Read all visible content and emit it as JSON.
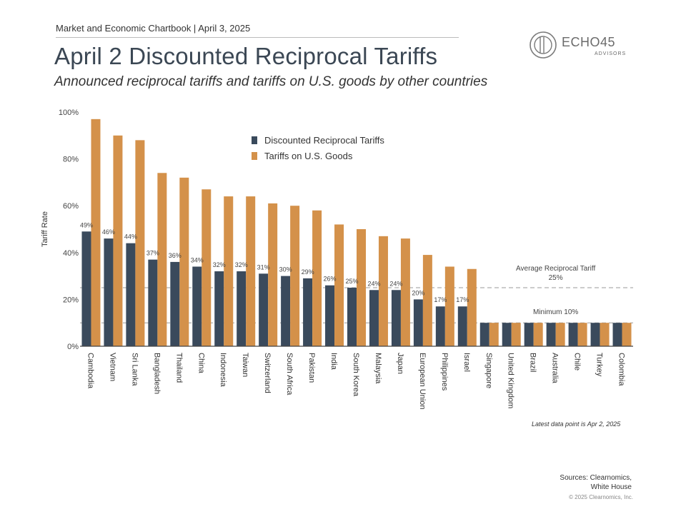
{
  "header": {
    "chartbook": "Market and Economic Chartbook | April 3, 2025",
    "title": "April 2 Discounted Reciprocal Tariffs",
    "subtitle": "Announced reciprocal tariffs and tariffs on U.S. goods by other countries"
  },
  "logo": {
    "name": "ECHO45",
    "sub": "ADVISORS"
  },
  "colors": {
    "reciprocal": "#3a4a5c",
    "us_goods": "#d4914a",
    "axis": "#444444",
    "ref_line": "#999999"
  },
  "chart_data": {
    "type": "bar",
    "ylabel": "Tariff Rate",
    "ylim": [
      0,
      100
    ],
    "yticks": [
      "0%",
      "20%",
      "40%",
      "60%",
      "80%",
      "100%"
    ],
    "ytick_values": [
      0,
      20,
      40,
      60,
      80,
      100
    ],
    "legend_placement": "top-center",
    "categories": [
      "Cambodia",
      "Vietnam",
      "Sri Lanka",
      "Bangladesh",
      "Thailand",
      "China",
      "Indonesia",
      "Taiwan",
      "Switzerland",
      "South Africa",
      "Pakistan",
      "India",
      "South Korea",
      "Malaysia",
      "Japan",
      "European Union",
      "Philippines",
      "Israel",
      "Singapore",
      "United Kingdom",
      "Brazil",
      "Australia",
      "Chile",
      "Turkey",
      "Colombia"
    ],
    "series": [
      {
        "name": "Discounted Reciprocal Tariffs",
        "values": [
          49,
          46,
          44,
          37,
          36,
          34,
          32,
          32,
          31,
          30,
          29,
          26,
          25,
          24,
          24,
          20,
          17,
          17,
          10,
          10,
          10,
          10,
          10,
          10,
          10
        ],
        "labels": [
          "49%",
          "46%",
          "44%",
          "37%",
          "36%",
          "34%",
          "32%",
          "32%",
          "31%",
          "30%",
          "29%",
          "26%",
          "25%",
          "24%",
          "24%",
          "20%",
          "17%",
          "17%",
          "",
          "",
          "",
          "",
          "",
          "",
          ""
        ]
      },
      {
        "name": "Tariffs on U.S. Goods",
        "values": [
          97,
          90,
          88,
          74,
          72,
          67,
          64,
          64,
          61,
          60,
          58,
          52,
          50,
          47,
          46,
          39,
          34,
          33,
          10,
          10,
          10,
          10,
          10,
          10,
          10
        ]
      }
    ],
    "reference_lines": [
      {
        "value": 25,
        "label": "Average Reciprocal Tariff",
        "sublabel": "25%"
      },
      {
        "value": 10,
        "label": "Minimum 10%",
        "sublabel": ""
      }
    ]
  },
  "footer": {
    "note": "Latest data point is Apr 2, 2025",
    "sources_line1": "Sources: Clearnomics,",
    "sources_line2": "White House",
    "copyright": "© 2025 Clearnomics, Inc."
  }
}
